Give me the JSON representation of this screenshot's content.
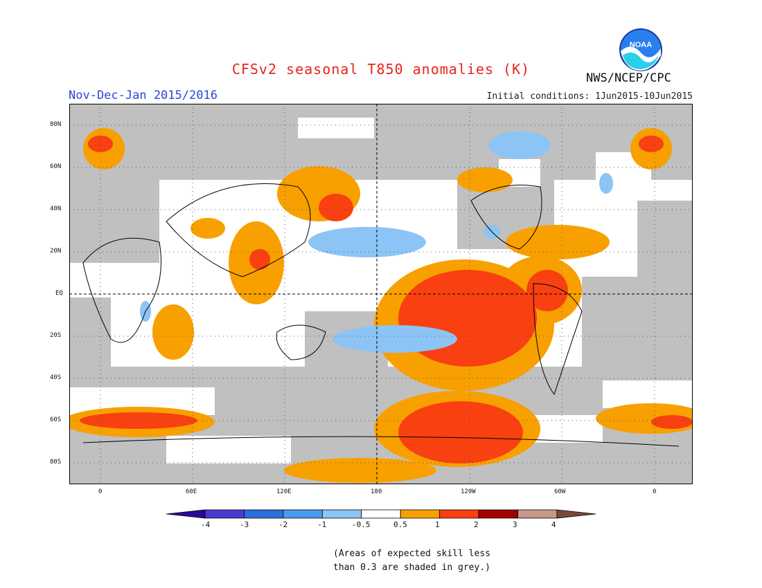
{
  "title": "CFSv2 seasonal T850 anomalies (K)",
  "period": "Nov-Dec-Jan 2015/2016",
  "initial_conditions": "Initial conditions: 1Jun2015-10Jun2015",
  "agency": "NWS/NCEP/CPC",
  "logo_text": "NOAA",
  "lat_labels": [
    "80N",
    "60N",
    "40N",
    "20N",
    "EQ",
    "20S",
    "40S",
    "60S",
    "80S"
  ],
  "lon_labels": [
    "0",
    "60E",
    "120E",
    "180",
    "120W",
    "60W",
    "0"
  ],
  "colorbar": {
    "colors": [
      "#2b0a9a",
      "#4a3ad0",
      "#2d6fd8",
      "#4a9af0",
      "#8cc4f5",
      "#ffffff",
      "#f8a000",
      "#f84010",
      "#a00000",
      "#c89888",
      "#7a4a3a"
    ],
    "labels": [
      "-4",
      "-3",
      "-2",
      "-1",
      "-0.5",
      "0.5",
      "1",
      "2",
      "3",
      "4"
    ]
  },
  "note_line1": "(Areas of expected skill less",
  "note_line2": "than 0.3 are shaded in grey.)"
}
